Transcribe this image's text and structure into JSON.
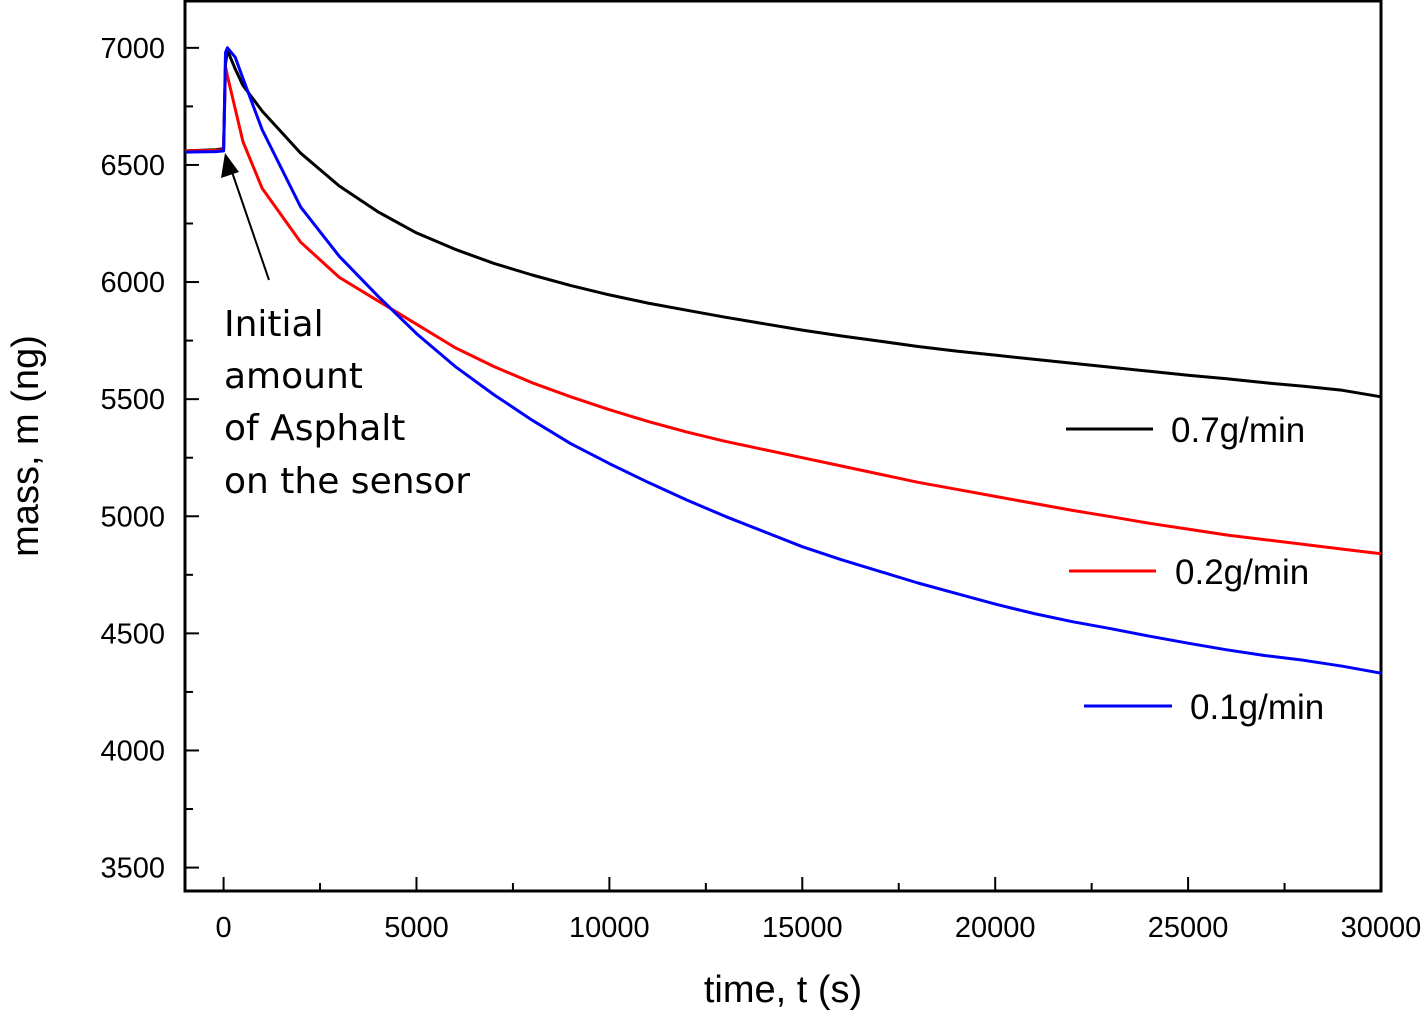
{
  "chart_data": {
    "type": "line",
    "xlabel": "time, t (s)",
    "ylabel": "mass, m (ng)",
    "xlim": [
      -1000,
      30000
    ],
    "ylim": [
      3400,
      7200
    ],
    "xticks": [
      0,
      5000,
      10000,
      15000,
      20000,
      25000,
      30000
    ],
    "xtick_labels": [
      "0",
      "5000",
      "10000",
      "15000",
      "20000",
      "25000",
      "30000"
    ],
    "yticks": [
      3500,
      4000,
      4500,
      5000,
      5500,
      6000,
      6500,
      7000
    ],
    "ytick_labels": [
      "3500",
      "4000",
      "4500",
      "5000",
      "5500",
      "6000",
      "6500",
      "7000"
    ],
    "grid": false,
    "legend_placement": "right",
    "annotation": {
      "lines": [
        "Initial",
        "amount",
        "of Asphalt",
        "on the sensor"
      ],
      "arrow_target": [
        0,
        6560
      ]
    },
    "series": [
      {
        "name": "0.7g/min",
        "color": "#000000",
        "x": [
          -1000,
          -200,
          0,
          50,
          100,
          300,
          500,
          1000,
          2000,
          3000,
          4000,
          5000,
          6000,
          7000,
          8000,
          9000,
          10000,
          11000,
          12000,
          13000,
          14000,
          15000,
          16000,
          17000,
          18000,
          19000,
          20000,
          21000,
          22000,
          23000,
          24000,
          25000,
          26000,
          27000,
          28000,
          29000,
          30000
        ],
        "y": [
          6560,
          6565,
          6570,
          6930,
          6990,
          6910,
          6840,
          6730,
          6550,
          6410,
          6300,
          6210,
          6140,
          6080,
          6030,
          5985,
          5945,
          5910,
          5880,
          5850,
          5822,
          5795,
          5770,
          5748,
          5725,
          5705,
          5688,
          5670,
          5653,
          5636,
          5619,
          5602,
          5587,
          5570,
          5555,
          5538,
          5510
        ]
      },
      {
        "name": "0.2g/min",
        "color": "#ff0000",
        "x": [
          -1000,
          -200,
          0,
          50,
          100,
          300,
          500,
          1000,
          2000,
          3000,
          4000,
          5000,
          6000,
          7000,
          8000,
          9000,
          10000,
          11000,
          12000,
          13000,
          14000,
          15000,
          16000,
          17000,
          18000,
          19000,
          20000,
          21000,
          22000,
          23000,
          24000,
          25000,
          26000,
          27000,
          28000,
          29000,
          30000
        ],
        "y": [
          6560,
          6562,
          6565,
          6920,
          6880,
          6740,
          6600,
          6400,
          6170,
          6020,
          5920,
          5820,
          5720,
          5640,
          5570,
          5510,
          5455,
          5405,
          5360,
          5320,
          5285,
          5250,
          5215,
          5180,
          5145,
          5115,
          5085,
          5055,
          5025,
          4998,
          4970,
          4945,
          4920,
          4900,
          4880,
          4860,
          4840
        ]
      },
      {
        "name": "0.1g/min",
        "color": "#0000ff",
        "x": [
          -1000,
          -200,
          0,
          50,
          100,
          300,
          500,
          1000,
          2000,
          3000,
          4000,
          5000,
          6000,
          7000,
          8000,
          9000,
          10000,
          11000,
          12000,
          13000,
          14000,
          15000,
          16000,
          17000,
          18000,
          19000,
          20000,
          21000,
          22000,
          23000,
          24000,
          25000,
          26000,
          27000,
          28000,
          29000,
          30000
        ],
        "y": [
          6555,
          6557,
          6560,
          6980,
          7000,
          6960,
          6870,
          6650,
          6320,
          6110,
          5940,
          5780,
          5640,
          5520,
          5410,
          5310,
          5225,
          5145,
          5070,
          5000,
          4935,
          4870,
          4815,
          4765,
          4715,
          4670,
          4625,
          4585,
          4550,
          4520,
          4488,
          4458,
          4430,
          4405,
          4385,
          4360,
          4330
        ]
      }
    ]
  }
}
